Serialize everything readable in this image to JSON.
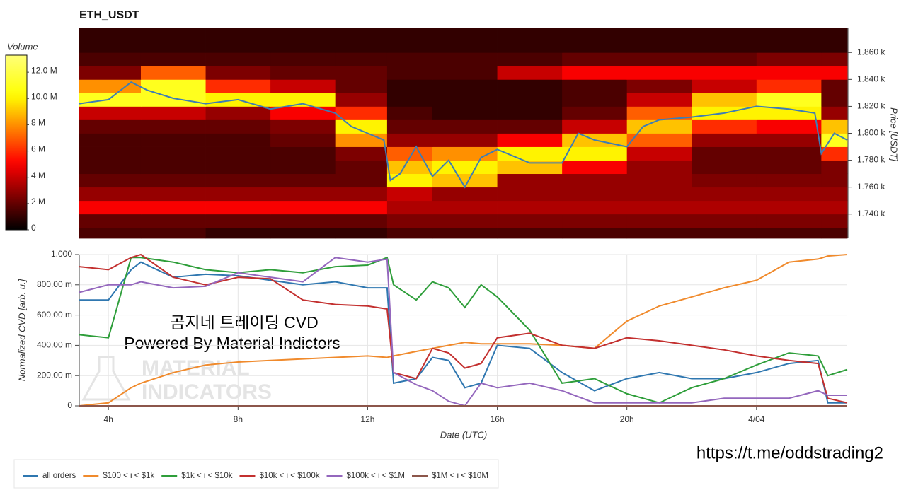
{
  "chart_data": [
    {
      "type": "heatmap",
      "title": "ETH_USDT",
      "ylabel": "Price [USDT]",
      "xlim": [
        3.1,
        26.8
      ],
      "ylim": [
        1722,
        1878
      ],
      "yticks": [
        {
          "value": 1740,
          "label": "1.740 k"
        },
        {
          "value": 1760,
          "label": "1.760 k"
        },
        {
          "value": 1780,
          "label": "1.780 k"
        },
        {
          "value": 1800,
          "label": "1.800 k"
        },
        {
          "value": 1820,
          "label": "1.820 k"
        },
        {
          "value": 1840,
          "label": "1.840 k"
        },
        {
          "value": 1860,
          "label": "1.860 k"
        }
      ],
      "colorbar": {
        "label": "Volume",
        "lim": [
          0,
          13.3
        ],
        "ticks": [
          0,
          {
            "value": 2,
            "label": "2 M"
          },
          {
            "value": 4,
            "label": "4 M"
          },
          {
            "value": 6,
            "label": "6 M"
          },
          {
            "value": 8,
            "label": "8 M"
          },
          {
            "value": 10,
            "label": "10.0 M"
          },
          {
            "value": 12,
            "label": "12.0 M"
          }
        ]
      },
      "x_edges": [
        3.1,
        5,
        7,
        9,
        11,
        12.6,
        14,
        16,
        18,
        20,
        22,
        24,
        26,
        26.8
      ],
      "y_edges": [
        1722,
        1730,
        1740,
        1750,
        1760,
        1770,
        1780,
        1790,
        1800,
        1810,
        1820,
        1830,
        1840,
        1850,
        1860,
        1878
      ],
      "values": [
        [
          1.5,
          1.5,
          1.0,
          1.0,
          1.0,
          1.5,
          1.5,
          1.5,
          1.5,
          1.5,
          1.5,
          1.5,
          1.5
        ],
        [
          2,
          2,
          2,
          2,
          2,
          2.5,
          2.5,
          2.5,
          2.5,
          2.5,
          2.5,
          2.5,
          2.5
        ],
        [
          5,
          5,
          5,
          5,
          5,
          3.5,
          3.5,
          3.5,
          3.5,
          3.5,
          3.5,
          3.5,
          3.5
        ],
        [
          3,
          3,
          3,
          3,
          3,
          4,
          3,
          3,
          3,
          3,
          3,
          3,
          3
        ],
        [
          2,
          2,
          2,
          2,
          2,
          10,
          9,
          3,
          3,
          3,
          2.5,
          2.5,
          2.5
        ],
        [
          1.5,
          1.5,
          1.5,
          1.5,
          2,
          9,
          10,
          9,
          5,
          3,
          2,
          2,
          2.5
        ],
        [
          1.5,
          1.5,
          1.5,
          1.5,
          2.5,
          7,
          8,
          10,
          10,
          4,
          2,
          2,
          6
        ],
        [
          1.5,
          1.5,
          1.5,
          2,
          8,
          3,
          3,
          5,
          9,
          7,
          3,
          3,
          11
        ],
        [
          2,
          2,
          2,
          2.5,
          10,
          2,
          2,
          2,
          4,
          9,
          6,
          5,
          9
        ],
        [
          4,
          4,
          3,
          5,
          6,
          1.5,
          1,
          1,
          2,
          7,
          10,
          10,
          3
        ],
        [
          11,
          11,
          10,
          10,
          3,
          1,
          1,
          1,
          1.5,
          4,
          9,
          11,
          2
        ],
        [
          8,
          11,
          6,
          4,
          2,
          1,
          1,
          1,
          1.5,
          2.5,
          4,
          6,
          2
        ],
        [
          2.5,
          7,
          2.5,
          2,
          2,
          1.5,
          1.5,
          4,
          5,
          5,
          5,
          5,
          5
        ],
        [
          1.5,
          1.5,
          1.5,
          1.5,
          1.5,
          1.5,
          1.5,
          1.5,
          2,
          2,
          2,
          2.5,
          2.5
        ],
        [
          1,
          1,
          1,
          1,
          1,
          1,
          1,
          1,
          1,
          1,
          1,
          1,
          1
        ]
      ],
      "price_line": {
        "color": "#3d7db5",
        "x": [
          3.1,
          4,
          4.7,
          5.2,
          6,
          7,
          8,
          9,
          10,
          11,
          11.5,
          12,
          12.5,
          12.7,
          13,
          13.5,
          14,
          14.5,
          15,
          15.5,
          16,
          17,
          18,
          18.5,
          19,
          20,
          20.5,
          21,
          22,
          23,
          24,
          25,
          25.8,
          26,
          26.4,
          26.8
        ],
        "values": [
          1822,
          1825,
          1838,
          1832,
          1826,
          1822,
          1825,
          1818,
          1822,
          1815,
          1805,
          1800,
          1795,
          1765,
          1770,
          1790,
          1768,
          1780,
          1760,
          1782,
          1788,
          1778,
          1778,
          1800,
          1795,
          1790,
          1805,
          1810,
          1812,
          1815,
          1820,
          1818,
          1815,
          1785,
          1800,
          1795
        ]
      }
    },
    {
      "type": "line",
      "ylabel": "Normalized CVD [arb. u.]",
      "xlabel": "Date (UTC)",
      "xlim": [
        3.1,
        26.8
      ],
      "ylim": [
        0,
        1
      ],
      "xticks": [
        {
          "value": 4,
          "label": "4h"
        },
        {
          "value": 8,
          "label": "8h"
        },
        {
          "value": 12,
          "label": "12h"
        },
        {
          "value": 16,
          "label": "16h"
        },
        {
          "value": 20,
          "label": "20h"
        },
        {
          "value": 24,
          "label": "4/04"
        }
      ],
      "yticks": [
        0,
        {
          "value": 0.2,
          "label": "200.00 m"
        },
        {
          "value": 0.4,
          "label": "400.00 m"
        },
        {
          "value": 0.6,
          "label": "600.00 m"
        },
        {
          "value": 0.8,
          "label": "800.00 m"
        },
        {
          "value": 1,
          "label": "1.000"
        }
      ],
      "grid": true,
      "legend": "bottom",
      "x": [
        3.1,
        4,
        4.7,
        5,
        6,
        7,
        8,
        9,
        10,
        11,
        12,
        12.6,
        12.8,
        13.5,
        14,
        14.5,
        15,
        15.5,
        16,
        17,
        18,
        19,
        20,
        21,
        22,
        23,
        24,
        25,
        25.9,
        26.2,
        26.8
      ],
      "series": [
        {
          "name": "all orders",
          "color": "#2f77b0",
          "values": [
            0.7,
            0.7,
            0.9,
            0.95,
            0.85,
            0.87,
            0.86,
            0.83,
            0.8,
            0.82,
            0.78,
            0.78,
            0.15,
            0.18,
            0.32,
            0.3,
            0.12,
            0.15,
            0.4,
            0.38,
            0.22,
            0.1,
            0.18,
            0.22,
            0.18,
            0.18,
            0.22,
            0.28,
            0.3,
            0.02,
            0.02
          ]
        },
        {
          "name": "$100 < i < $1k",
          "color": "#f08a2c",
          "values": [
            0.0,
            0.02,
            0.12,
            0.15,
            0.22,
            0.27,
            0.29,
            0.3,
            0.31,
            0.32,
            0.33,
            0.32,
            0.33,
            0.36,
            0.38,
            0.4,
            0.42,
            0.41,
            0.41,
            0.41,
            0.4,
            0.38,
            0.56,
            0.66,
            0.72,
            0.78,
            0.83,
            0.95,
            0.97,
            0.99,
            1.0
          ]
        },
        {
          "name": "$1k < i < $10k",
          "color": "#2e9e3a",
          "values": [
            0.47,
            0.45,
            0.98,
            0.98,
            0.95,
            0.9,
            0.88,
            0.9,
            0.88,
            0.92,
            0.93,
            0.98,
            0.8,
            0.7,
            0.82,
            0.78,
            0.65,
            0.8,
            0.72,
            0.5,
            0.15,
            0.18,
            0.08,
            0.02,
            0.12,
            0.18,
            0.27,
            0.35,
            0.33,
            0.2,
            0.24
          ]
        },
        {
          "name": "$10k < i < $100k",
          "color": "#c3302f",
          "values": [
            0.92,
            0.9,
            0.98,
            1.0,
            0.85,
            0.8,
            0.85,
            0.84,
            0.7,
            0.67,
            0.66,
            0.64,
            0.22,
            0.18,
            0.38,
            0.35,
            0.25,
            0.28,
            0.45,
            0.48,
            0.4,
            0.38,
            0.45,
            0.43,
            0.4,
            0.37,
            0.33,
            0.3,
            0.28,
            0.05,
            0.02
          ]
        },
        {
          "name": "$100k < i < $1M",
          "color": "#9467bd",
          "values": [
            0.75,
            0.8,
            0.8,
            0.82,
            0.78,
            0.79,
            0.88,
            0.85,
            0.82,
            0.98,
            0.95,
            0.97,
            0.22,
            0.14,
            0.1,
            0.03,
            0.0,
            0.15,
            0.12,
            0.15,
            0.1,
            0.02,
            0.02,
            0.02,
            0.02,
            0.05,
            0.05,
            0.05,
            0.1,
            0.07,
            0.07
          ]
        },
        {
          "name": "$1M < i < $10M",
          "color": "#8c564b",
          "values": [
            0,
            0,
            0,
            0,
            0,
            0,
            0,
            0,
            0,
            0,
            0,
            0,
            0,
            0,
            0,
            0,
            0,
            0,
            0,
            0,
            0,
            0,
            0,
            0,
            0,
            0,
            0,
            0,
            0,
            0,
            0
          ]
        }
      ]
    }
  ],
  "annotations": [
    "곰지네 트레이딩 CVD",
    "Powered By Material Indictors"
  ],
  "watermark": [
    "MATERIAL",
    "INDICATORS"
  ],
  "footer_link": "https://t.me/oddstrading2"
}
